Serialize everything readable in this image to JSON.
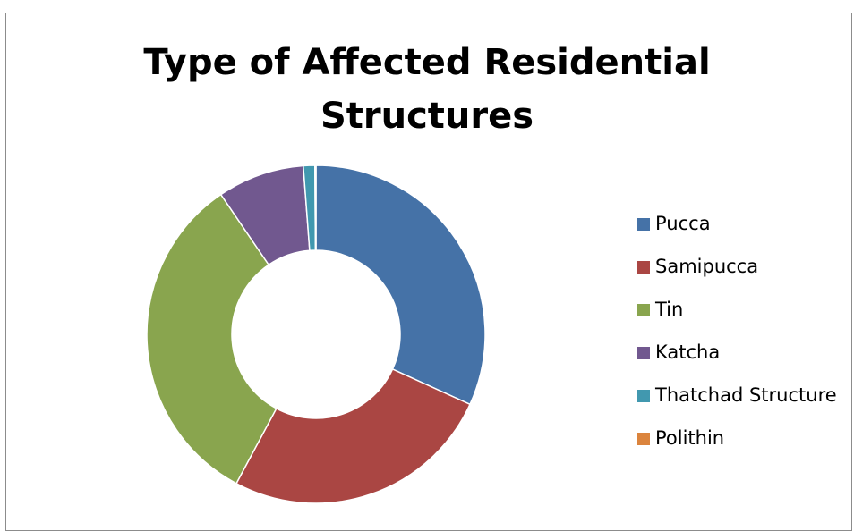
{
  "chart_data": {
    "type": "pie",
    "variant": "doughnut",
    "title_lines": [
      "Type of Affected Residential",
      "Structures"
    ],
    "categories": [
      "Pucca",
      "Samipucca",
      "Tin",
      "Katcha",
      "Thatchad Structure",
      "Polithin"
    ],
    "values": [
      31.8,
      26.0,
      32.7,
      8.3,
      1.1,
      0.1
    ],
    "colors": [
      "#4572A7",
      "#AA4643",
      "#89A54E",
      "#71588F",
      "#4198AF",
      "#DB843D"
    ],
    "legend_position": "right"
  }
}
